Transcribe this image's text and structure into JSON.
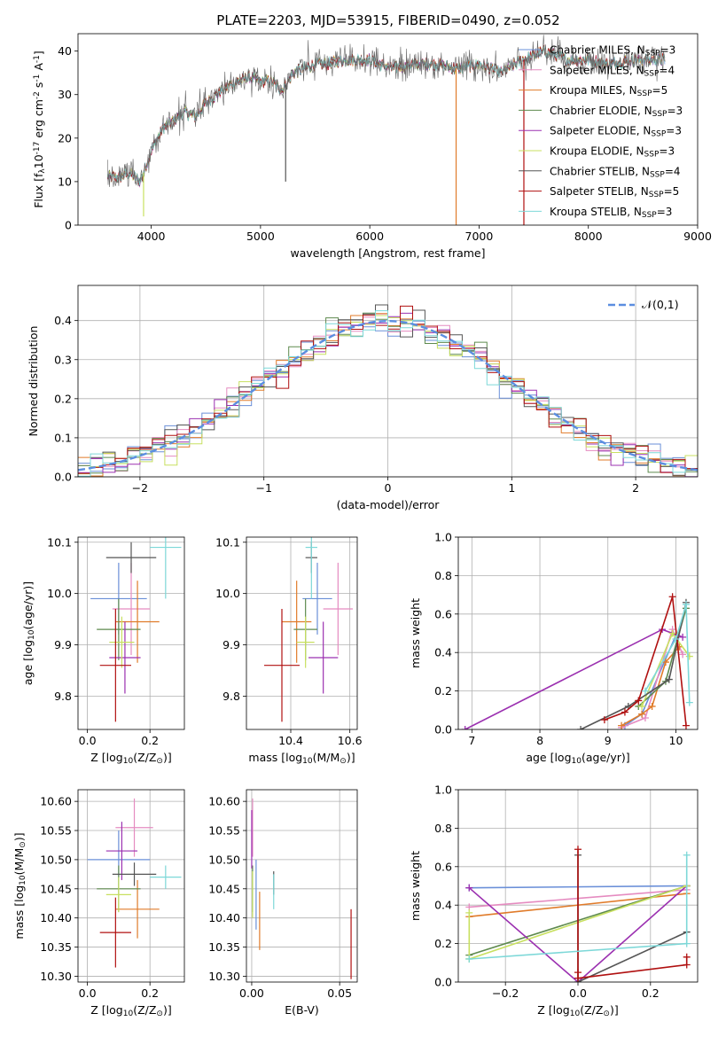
{
  "figure_title": "PLATE=2203, MJD=53915, FIBERID=0490, z=0.052",
  "colors": {
    "Chabrier MILES": "#6a8fd8",
    "Salpeter MILES": "#e58bc0",
    "Kroupa MILES": "#e07b2a",
    "Chabrier ELODIE": "#5e8a4e",
    "Salpeter ELODIE": "#9b30b0",
    "Kroupa ELODIE": "#c8e060",
    "Chabrier STELIB": "#555555",
    "Salpeter STELIB": "#b01010",
    "Kroupa STELIB": "#7dd8d8",
    "gaussian": "#5b8ee0",
    "data": "#666666"
  },
  "legend_entries": [
    "Chabrier MILES, N$_{SSP}$=3",
    "Salpeter MILES, N$_{SSP}$=4",
    "Kroupa MILES, N$_{SSP}$=5",
    "Chabrier ELODIE, N$_{SSP}$=3",
    "Salpeter ELODIE, N$_{SSP}$=3",
    "Kroupa ELODIE, N$_{SSP}$=3",
    "Chabrier STELIB, N$_{SSP}$=4",
    "Salpeter STELIB, N$_{SSP}$=5",
    "Kroupa STELIB, N$_{SSP}$=3"
  ],
  "chart_data": [
    {
      "id": "spectrum",
      "type": "line",
      "xlabel": "wavelength [Angstrom, rest frame]",
      "ylabel": "Flux [f$_\\lambda$10$^{-17}$ erg cm$^{-2}$ s$^{-1}$ A$^{-1}$]",
      "xlim": [
        3330,
        9000
      ],
      "ylim": [
        0,
        44
      ],
      "xticks": [
        4000,
        5000,
        6000,
        7000,
        8000,
        9000
      ],
      "yticks": [
        0,
        10,
        20,
        30,
        40
      ],
      "data_trend": {
        "x": [
          3600,
          3700,
          3800,
          3900,
          4000,
          4100,
          4200,
          4300,
          4400,
          4500,
          4600,
          4700,
          4800,
          4900,
          5000,
          5100,
          5200,
          5300,
          5400,
          5500,
          5600,
          5800,
          6000,
          6200,
          6400,
          6600,
          6800,
          7000,
          7200,
          7400,
          7600,
          7800,
          8000,
          8200,
          8400,
          8700
        ],
        "y": [
          11,
          11,
          12,
          10,
          17,
          22,
          24,
          26,
          25,
          28,
          30,
          32,
          33,
          34,
          33,
          33,
          31,
          35,
          36,
          37,
          37,
          38,
          38,
          36,
          37,
          37,
          36,
          37,
          35,
          38,
          40,
          38,
          38,
          37,
          38,
          38
        ]
      },
      "sky_lines": [
        {
          "x": 3930,
          "ylow": 2
        },
        {
          "x": 6790,
          "ylow": 0
        },
        {
          "x": 7410,
          "ylow": 0
        },
        {
          "x": 5230,
          "ylow": 10
        }
      ]
    },
    {
      "id": "residual_histogram",
      "type": "histogram",
      "xlabel": "(data-model)/error",
      "ylabel": "Normed distribution",
      "xlim": [
        -2.5,
        2.5
      ],
      "ylim": [
        0,
        0.49
      ],
      "xticks": [
        -2,
        -1,
        0,
        1,
        2
      ],
      "yticks": [
        0.0,
        0.1,
        0.2,
        0.3,
        0.4
      ],
      "gaussian_label": "$\\mathcal{N}(0,1)$",
      "gaussian_sigma": 1.0,
      "bin_width": 0.1
    },
    {
      "id": "age_vs_Z",
      "type": "scatter",
      "xlabel": "Z [log$_{10}$(Z/Z$_\\odot$)]",
      "ylabel": "age  [log$_{10}$(age/yr)]",
      "xlim": [
        -0.03,
        0.31
      ],
      "ylim": [
        9.735,
        10.11
      ],
      "xticks": [
        0.0,
        0.2
      ],
      "yticks": [
        9.8,
        9.9,
        10.0,
        10.1
      ],
      "points": [
        {
          "model": "Chabrier MILES",
          "x": 0.1,
          "y": 9.99,
          "xerr": 0.09,
          "yerr": 0.07
        },
        {
          "model": "Salpeter MILES",
          "x": 0.14,
          "y": 9.97,
          "xerr": 0.06,
          "yerr": 0.09
        },
        {
          "model": "Kroupa MILES",
          "x": 0.16,
          "y": 9.945,
          "xerr": 0.07,
          "yerr": 0.08
        },
        {
          "model": "Chabrier ELODIE",
          "x": 0.1,
          "y": 9.93,
          "xerr": 0.07,
          "yerr": 0.06
        },
        {
          "model": "Salpeter ELODIE",
          "x": 0.12,
          "y": 9.875,
          "xerr": 0.05,
          "yerr": 0.07
        },
        {
          "model": "Kroupa ELODIE",
          "x": 0.11,
          "y": 9.905,
          "xerr": 0.04,
          "yerr": 0.05
        },
        {
          "model": "Chabrier STELIB",
          "x": 0.14,
          "y": 10.07,
          "xerr": 0.08,
          "yerr": 0.03
        },
        {
          "model": "Salpeter STELIB",
          "x": 0.09,
          "y": 9.86,
          "xerr": 0.05,
          "yerr": 0.11
        },
        {
          "model": "Kroupa STELIB",
          "x": 0.25,
          "y": 10.09,
          "xerr": 0.05,
          "yerr": 0.1
        }
      ]
    },
    {
      "id": "age_vs_mass",
      "type": "scatter",
      "xlabel": "mass [log$_{10}$(M/M$_\\odot$)]",
      "ylabel": "",
      "xlim": [
        10.25,
        10.625
      ],
      "ylim": [
        9.735,
        10.11
      ],
      "xticks": [
        10.4,
        10.6
      ],
      "yticks": [
        9.8,
        9.9,
        10.0,
        10.1
      ],
      "points": [
        {
          "model": "Chabrier MILES",
          "x": 10.49,
          "y": 9.99,
          "xerr": 0.05,
          "yerr": 0.07
        },
        {
          "model": "Salpeter MILES",
          "x": 10.56,
          "y": 9.97,
          "xerr": 0.05,
          "yerr": 0.09
        },
        {
          "model": "Kroupa MILES",
          "x": 10.42,
          "y": 9.945,
          "xerr": 0.05,
          "yerr": 0.08
        },
        {
          "model": "Chabrier ELODIE",
          "x": 10.45,
          "y": 9.93,
          "xerr": 0.04,
          "yerr": 0.06
        },
        {
          "model": "Salpeter ELODIE",
          "x": 10.51,
          "y": 9.875,
          "xerr": 0.05,
          "yerr": 0.07
        },
        {
          "model": "Kroupa ELODIE",
          "x": 10.45,
          "y": 9.905,
          "xerr": 0.03,
          "yerr": 0.05
        },
        {
          "model": "Chabrier STELIB",
          "x": 10.47,
          "y": 10.07,
          "xerr": 0.02,
          "yerr": 0.03
        },
        {
          "model": "Salpeter STELIB",
          "x": 10.37,
          "y": 9.86,
          "xerr": 0.06,
          "yerr": 0.11
        },
        {
          "model": "Kroupa STELIB",
          "x": 10.47,
          "y": 10.09,
          "xerr": 0.02,
          "yerr": 0.1
        }
      ]
    },
    {
      "id": "weight_vs_age",
      "type": "line",
      "xlabel": "age  [log$_{10}$(age/yr)]",
      "ylabel": "mass weight",
      "xlim": [
        6.8,
        10.32
      ],
      "ylim": [
        0,
        1
      ],
      "xticks": [
        7,
        8,
        9,
        10
      ],
      "yticks": [
        0.0,
        0.2,
        0.4,
        0.6,
        0.8,
        1.0
      ],
      "series": [
        {
          "model": "Chabrier MILES",
          "x": [
            9.25,
            9.5,
            10.0
          ],
          "y": [
            0.02,
            0.08,
            0.49
          ]
        },
        {
          "model": "Salpeter MILES",
          "x": [
            9.2,
            9.55,
            9.95,
            10.1
          ],
          "y": [
            0.01,
            0.06,
            0.52,
            0.39
          ]
        },
        {
          "model": "Kroupa MILES",
          "x": [
            9.2,
            9.5,
            9.65,
            9.85,
            10.05
          ],
          "y": [
            0.02,
            0.08,
            0.12,
            0.35,
            0.43
          ]
        },
        {
          "model": "Chabrier ELODIE",
          "x": [
            9.45,
            9.85,
            10.15
          ],
          "y": [
            0.12,
            0.25,
            0.63
          ]
        },
        {
          "model": "Salpeter ELODIE",
          "x": [
            6.9,
            9.8,
            10.1
          ],
          "y": [
            0.0,
            0.52,
            0.48
          ]
        },
        {
          "model": "Kroupa ELODIE",
          "x": [
            9.5,
            9.95,
            10.2
          ],
          "y": [
            0.12,
            0.5,
            0.38
          ]
        },
        {
          "model": "Chabrier STELIB",
          "x": [
            8.6,
            9.3,
            9.9,
            10.15
          ],
          "y": [
            0.0,
            0.12,
            0.26,
            0.66
          ]
        },
        {
          "model": "Salpeter STELIB",
          "x": [
            8.95,
            9.25,
            9.45,
            9.95,
            10.15
          ],
          "y": [
            0.05,
            0.09,
            0.15,
            0.69,
            0.02
          ]
        },
        {
          "model": "Kroupa STELIB",
          "x": [
            9.55,
            10.0,
            10.15,
            10.2
          ],
          "y": [
            0.2,
            0.47,
            0.65,
            0.14
          ]
        }
      ]
    },
    {
      "id": "mass_vs_Z",
      "type": "scatter",
      "xlabel": "Z [log$_{10}$(Z/Z$_\\odot$)]",
      "ylabel": "mass [log$_{10}$(M/M$_\\odot$)]",
      "xlim": [
        -0.03,
        0.31
      ],
      "ylim": [
        10.29,
        10.62
      ],
      "xticks": [
        0.0,
        0.2
      ],
      "yticks": [
        10.3,
        10.35,
        10.4,
        10.45,
        10.5,
        10.55,
        10.6
      ],
      "points": [
        {
          "model": "Chabrier MILES",
          "x": 0.1,
          "y": 10.5,
          "xerr": 0.1,
          "yerr": 0.05
        },
        {
          "model": "Salpeter MILES",
          "x": 0.15,
          "y": 10.555,
          "xerr": 0.06,
          "yerr": 0.05
        },
        {
          "model": "Kroupa MILES",
          "x": 0.16,
          "y": 10.415,
          "xerr": 0.07,
          "yerr": 0.05
        },
        {
          "model": "Chabrier ELODIE",
          "x": 0.1,
          "y": 10.45,
          "xerr": 0.07,
          "yerr": 0.04
        },
        {
          "model": "Salpeter ELODIE",
          "x": 0.11,
          "y": 10.515,
          "xerr": 0.05,
          "yerr": 0.05
        },
        {
          "model": "Kroupa ELODIE",
          "x": 0.1,
          "y": 10.44,
          "xerr": 0.04,
          "yerr": 0.03
        },
        {
          "model": "Chabrier STELIB",
          "x": 0.15,
          "y": 10.475,
          "xerr": 0.07,
          "yerr": 0.02
        },
        {
          "model": "Salpeter STELIB",
          "x": 0.09,
          "y": 10.375,
          "xerr": 0.05,
          "yerr": 0.06
        },
        {
          "model": "Kroupa STELIB",
          "x": 0.25,
          "y": 10.47,
          "xerr": 0.05,
          "yerr": 0.02
        }
      ]
    },
    {
      "id": "mass_vs_ebv",
      "type": "scatter",
      "xlabel": "E(B-V)",
      "ylabel": "",
      "xlim": [
        -0.003,
        0.06
      ],
      "ylim": [
        10.29,
        10.62
      ],
      "xticks": [
        0.0,
        0.05
      ],
      "yticks": [
        10.3,
        10.35,
        10.4,
        10.45,
        10.5,
        10.55,
        10.6
      ],
      "points": [
        {
          "model": "Chabrier MILES",
          "x": 0.0025,
          "y": 10.44,
          "xerr": 0,
          "yerr": 0.06
        },
        {
          "model": "Salpeter MILES",
          "x": 0.0005,
          "y": 10.555,
          "xerr": 0,
          "yerr": 0.05
        },
        {
          "model": "Kroupa MILES",
          "x": 0.0045,
          "y": 10.395,
          "xerr": 0,
          "yerr": 0.05
        },
        {
          "model": "Chabrier ELODIE",
          "x": 0.0005,
          "y": 10.45,
          "xerr": 0,
          "yerr": 0.04
        },
        {
          "model": "Salpeter ELODIE",
          "x": 0.0,
          "y": 10.535,
          "xerr": 0,
          "yerr": 0.05
        },
        {
          "model": "Kroupa ELODIE",
          "x": 0.0005,
          "y": 10.44,
          "xerr": 0,
          "yerr": 0.04
        },
        {
          "model": "Chabrier STELIB",
          "x": 0.0125,
          "y": 10.46,
          "xerr": 0,
          "yerr": 0.02
        },
        {
          "model": "Salpeter STELIB",
          "x": 0.0565,
          "y": 10.355,
          "xerr": 0,
          "yerr": 0.06
        },
        {
          "model": "Kroupa STELIB",
          "x": 0.0125,
          "y": 10.445,
          "xerr": 0,
          "yerr": 0.03
        }
      ]
    },
    {
      "id": "weight_vs_Z",
      "type": "line",
      "xlabel": "Z [log$_{10}$(Z/Z$_\\odot$)]",
      "ylabel": "mass weight",
      "xlim": [
        -0.33,
        0.33
      ],
      "ylim": [
        0,
        1
      ],
      "xticks": [
        -0.2,
        0.0,
        0.2
      ],
      "yticks": [
        0.0,
        0.2,
        0.4,
        0.6,
        0.8,
        1.0
      ],
      "series": [
        {
          "model": "Chabrier MILES",
          "x": [
            -0.3,
            0.3
          ],
          "y": [
            0.49,
            0.5
          ]
        },
        {
          "model": "Salpeter MILES",
          "x": [
            -0.3,
            0.3
          ],
          "y": [
            0.39,
            0.48
          ]
        },
        {
          "model": "Kroupa MILES",
          "x": [
            -0.3,
            0.3
          ],
          "y": [
            0.34,
            0.46
          ]
        },
        {
          "model": "Chabrier ELODIE",
          "x": [
            -0.3,
            0.3
          ],
          "y": [
            0.14,
            0.5
          ]
        },
        {
          "model": "Salpeter ELODIE",
          "x": [
            -0.3,
            0.0,
            0.3
          ],
          "y": [
            0.49,
            0.0,
            0.5
          ]
        },
        {
          "model": "Kroupa ELODIE",
          "x": [
            -0.3,
            -0.3,
            0.3
          ],
          "y": [
            0.36,
            0.12,
            0.5
          ]
        },
        {
          "model": "Chabrier STELIB",
          "x": [
            0.0,
            0.0,
            0.3
          ],
          "y": [
            0.66,
            0.0,
            0.26
          ]
        },
        {
          "model": "Salpeter STELIB",
          "x": [
            0.0,
            0.0,
            0.0,
            0.3,
            0.3
          ],
          "y": [
            0.69,
            0.05,
            0.02,
            0.09,
            0.13
          ]
        },
        {
          "model": "Kroupa STELIB",
          "x": [
            -0.3,
            0.3,
            0.3
          ],
          "y": [
            0.12,
            0.2,
            0.66
          ]
        }
      ]
    }
  ]
}
